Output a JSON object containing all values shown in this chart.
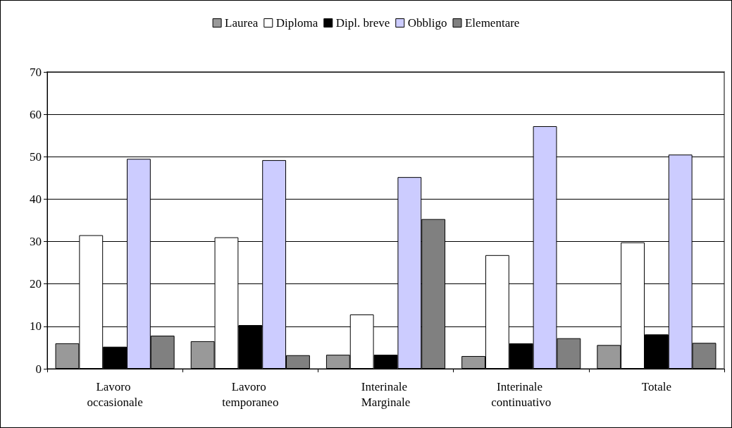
{
  "chart_data": {
    "type": "bar",
    "categories": [
      "Lavoro occasionale",
      "Lavoro temporaneo",
      "Interinale Marginale",
      "Interinale continuativo",
      "Totale"
    ],
    "series": [
      {
        "name": "Laurea",
        "color": "#999999",
        "values": [
          6,
          6.5,
          3.3,
          3,
          5.6
        ]
      },
      {
        "name": "Diploma",
        "color": "#ffffff",
        "values": [
          31.5,
          31,
          12.8,
          26.8,
          29.8
        ]
      },
      {
        "name": "Dipl. breve",
        "color": "#000000",
        "values": [
          5.2,
          10.3,
          3.3,
          6,
          8.1
        ]
      },
      {
        "name": "Obbligo",
        "color": "#ccccff",
        "values": [
          49.5,
          49.2,
          45.2,
          57.2,
          50.5
        ]
      },
      {
        "name": "Elementare",
        "color": "#808080",
        "values": [
          7.8,
          3.2,
          35.3,
          7.2,
          6.1
        ]
      }
    ],
    "ylim": [
      0,
      70
    ],
    "yticks": [
      0,
      10,
      20,
      30,
      40,
      50,
      60,
      70
    ],
    "grid": "y",
    "legend": "top"
  }
}
